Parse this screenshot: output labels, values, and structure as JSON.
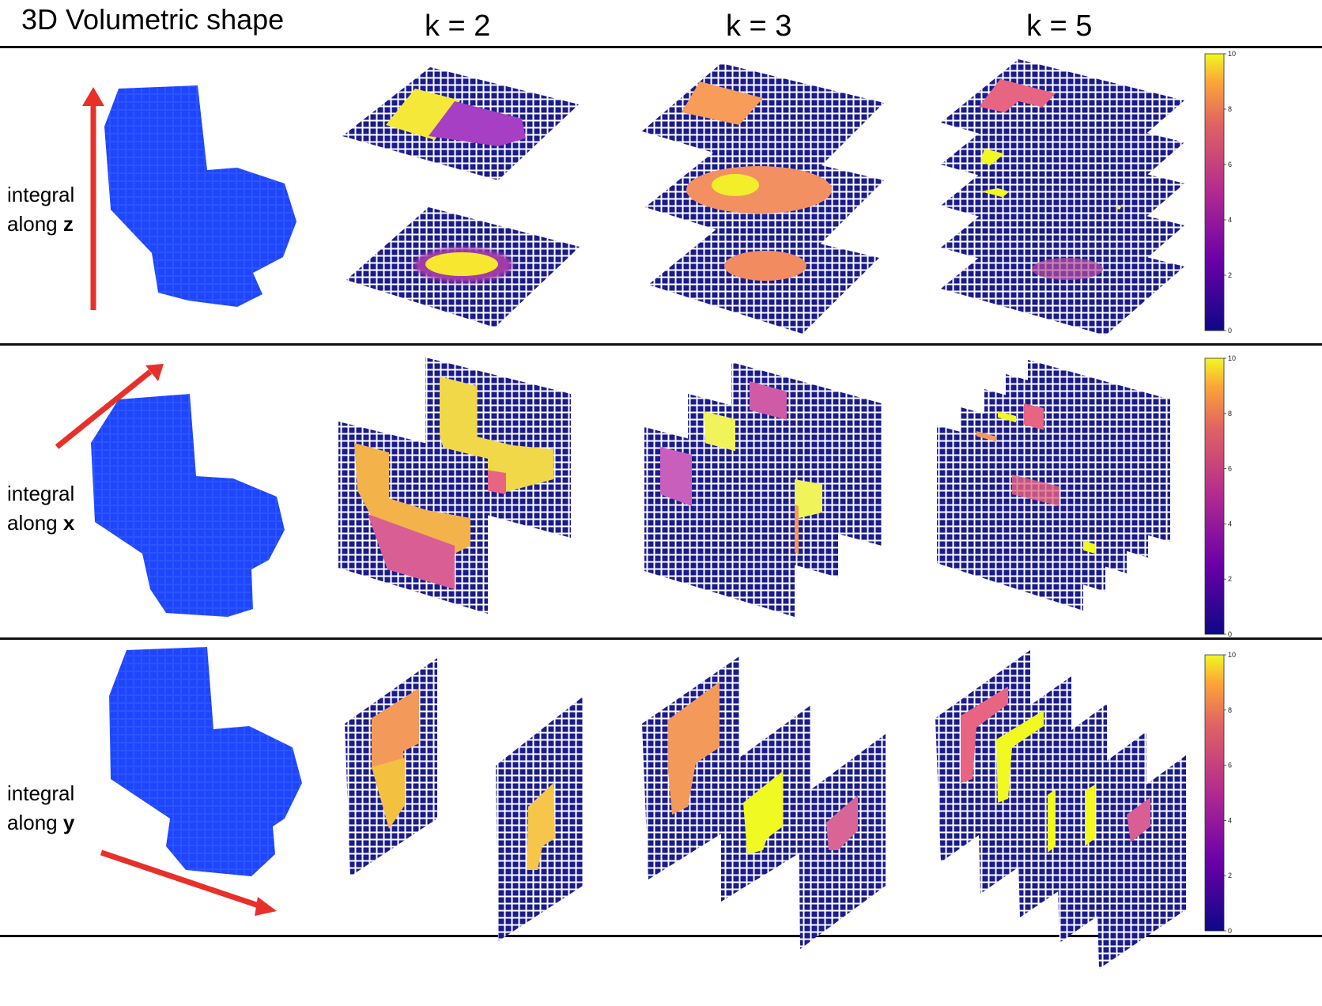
{
  "title": "3D Volumetric shape",
  "columns": [
    "k = 2",
    "k = 3",
    "k = 5"
  ],
  "rows": [
    {
      "label_line1": "integral",
      "label_line2_prefix": "along ",
      "axis": "z",
      "k_values": [
        2,
        3,
        5
      ]
    },
    {
      "label_line1": "integral",
      "label_line2_prefix": "along ",
      "axis": "x",
      "k_values": [
        2,
        3,
        5
      ]
    },
    {
      "label_line1": "integral",
      "label_line2_prefix": "along ",
      "axis": "y",
      "k_values": [
        2,
        3,
        5
      ]
    }
  ],
  "colorbar": {
    "ticks": [
      "0",
      "2",
      "4",
      "6",
      "8",
      "10"
    ],
    "min": 0,
    "max": 10,
    "colormap": "plasma"
  },
  "colors": {
    "voxel": "#1f47ff",
    "grid": "#1a1a8c",
    "arrow": "#e8302a",
    "separator": "#111111"
  }
}
